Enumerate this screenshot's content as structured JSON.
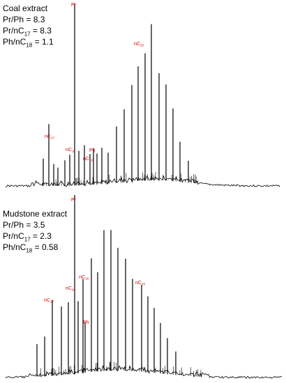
{
  "chart_data": [
    {
      "type": "line",
      "title": "Coal extract",
      "ratios": [
        {
          "base": "Pr/Ph",
          "sub": "",
          "rest": "",
          "value": "8.3"
        },
        {
          "base": "Pr/nC",
          "sub": "17",
          "rest": "",
          "value": "8.3"
        },
        {
          "base": "Ph/nC",
          "sub": "18",
          "rest": "",
          "value": "1.1"
        }
      ],
      "peak_labels": [
        {
          "base": "nC",
          "sub": "17"
        },
        {
          "base": "Pr",
          "sub": ""
        },
        {
          "base": "nC",
          "sub": "18"
        },
        {
          "base": "Ph",
          "sub": ""
        },
        {
          "base": "nC",
          "sub": "18"
        },
        {
          "base": "nC",
          "sub": "25"
        }
      ],
      "peaks": [
        {
          "x": 62,
          "h": 0.15
        },
        {
          "x": 70,
          "h": 0.34
        },
        {
          "x": 77,
          "h": 0.12
        },
        {
          "x": 83,
          "h": 0.1
        },
        {
          "x": 93,
          "h": 0.14
        },
        {
          "x": 100,
          "h": 0.17
        },
        {
          "x": 107,
          "h": 1.0
        },
        {
          "x": 113,
          "h": 0.19
        },
        {
          "x": 121,
          "h": 0.22
        },
        {
          "x": 129,
          "h": 0.17
        },
        {
          "x": 134,
          "h": 0.2
        },
        {
          "x": 139,
          "h": 0.17
        },
        {
          "x": 146,
          "h": 0.2
        },
        {
          "x": 155,
          "h": 0.17
        },
        {
          "x": 167,
          "h": 0.31
        },
        {
          "x": 178,
          "h": 0.4
        },
        {
          "x": 189,
          "h": 0.53
        },
        {
          "x": 198,
          "h": 0.63
        },
        {
          "x": 208,
          "h": 0.7
        },
        {
          "x": 217,
          "h": 0.86
        },
        {
          "x": 228,
          "h": 0.59
        },
        {
          "x": 238,
          "h": 0.53
        },
        {
          "x": 248,
          "h": 0.4
        },
        {
          "x": 258,
          "h": 0.22
        },
        {
          "x": 270,
          "h": 0.12
        }
      ]
    },
    {
      "type": "line",
      "title": "Mudstone extract",
      "ratios": [
        {
          "base": "Pr/Ph",
          "sub": "",
          "rest": "",
          "value": "3.5"
        },
        {
          "base": "Pr/nC",
          "sub": "17",
          "rest": "",
          "value": "2.3"
        },
        {
          "base": "Ph/nC",
          "sub": "18",
          "rest": "",
          "value": "0.58"
        }
      ],
      "peak_labels": [
        {
          "base": "nC",
          "sub": "17"
        },
        {
          "base": "Pr",
          "sub": ""
        },
        {
          "base": "nC",
          "sub": "18"
        },
        {
          "base": "nC",
          "sub": "19"
        },
        {
          "base": "Ph",
          "sub": ""
        },
        {
          "base": "nC",
          "sub": "25"
        }
      ],
      "peaks": [
        {
          "x": 53,
          "h": 0.18
        },
        {
          "x": 64,
          "h": 0.22
        },
        {
          "x": 75,
          "h": 0.42
        },
        {
          "x": 88,
          "h": 0.38
        },
        {
          "x": 98,
          "h": 0.4
        },
        {
          "x": 107,
          "h": 1.0
        },
        {
          "x": 112,
          "h": 0.4
        },
        {
          "x": 119,
          "h": 0.52
        },
        {
          "x": 122,
          "h": 0.28
        },
        {
          "x": 131,
          "h": 0.63
        },
        {
          "x": 140,
          "h": 0.55
        },
        {
          "x": 149,
          "h": 0.78
        },
        {
          "x": 159,
          "h": 0.78
        },
        {
          "x": 169,
          "h": 0.68
        },
        {
          "x": 180,
          "h": 0.62
        },
        {
          "x": 190,
          "h": 0.51
        },
        {
          "x": 203,
          "h": 0.48
        },
        {
          "x": 212,
          "h": 0.42
        },
        {
          "x": 221,
          "h": 0.36
        },
        {
          "x": 230,
          "h": 0.28
        },
        {
          "x": 240,
          "h": 0.2
        },
        {
          "x": 252,
          "h": 0.13
        }
      ]
    }
  ]
}
